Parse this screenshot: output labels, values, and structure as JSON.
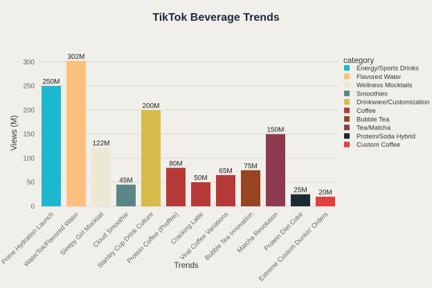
{
  "chart_data": {
    "type": "bar",
    "title": "TikTok Beverage Trends",
    "xlabel": "Trends",
    "ylabel": "Views (M)",
    "ylim": [
      0,
      315
    ],
    "yticks": [
      0,
      50,
      100,
      150,
      200,
      250,
      300
    ],
    "grid": true,
    "legend_position": "right",
    "legend_title": "category",
    "categories": [
      "Prime Hydration Launch",
      "WaterTok/Flavored Water",
      "Sleepy Girl Mocktail",
      "Cloud Smoothie",
      "Stanley Cup Drink Culture",
      "Protein Coffee (Proffee)",
      "Cracking Latte",
      "Viral Coffee Variations",
      "Bubble Tea Innovation",
      "Matcha Revolution",
      "Protein Diet Coke",
      "Extreme Custom Dunkin' Orders"
    ],
    "values": [
      250,
      302,
      122,
      45,
      200,
      80,
      50,
      65,
      75,
      150,
      25,
      20
    ],
    "value_labels": [
      "250M",
      "302M",
      "122M",
      "45M",
      "200M",
      "80M",
      "50M",
      "65M",
      "75M",
      "150M",
      "25M",
      "20M"
    ],
    "bar_category": [
      "Energy/Sports Drinks",
      "Flavored Water",
      "Wellness Mocktails",
      "Smoothies",
      "Drinkware/Customization",
      "Coffee",
      "Coffee",
      "Coffee",
      "Bubble Tea",
      "Tea/Matcha",
      "Protein/Soda Hybrid",
      "Custom Coffee"
    ],
    "legend": [
      {
        "name": "Energy/Sports Drinks",
        "color": "#1db8cf"
      },
      {
        "name": "Flavored Water",
        "color": "#fdbf7e"
      },
      {
        "name": "Wellness Mocktails",
        "color": "#ebe8d6"
      },
      {
        "name": "Smoothies",
        "color": "#5a8688"
      },
      {
        "name": "Drinkware/Customization",
        "color": "#d5bb4a"
      },
      {
        "name": "Coffee",
        "color": "#b53a37"
      },
      {
        "name": "Bubble Tea",
        "color": "#974421"
      },
      {
        "name": "Tea/Matcha",
        "color": "#8e3b50"
      },
      {
        "name": "Protein/Soda Hybrid",
        "color": "#1b2b33"
      },
      {
        "name": "Custom Coffee",
        "color": "#e0403e"
      }
    ]
  }
}
